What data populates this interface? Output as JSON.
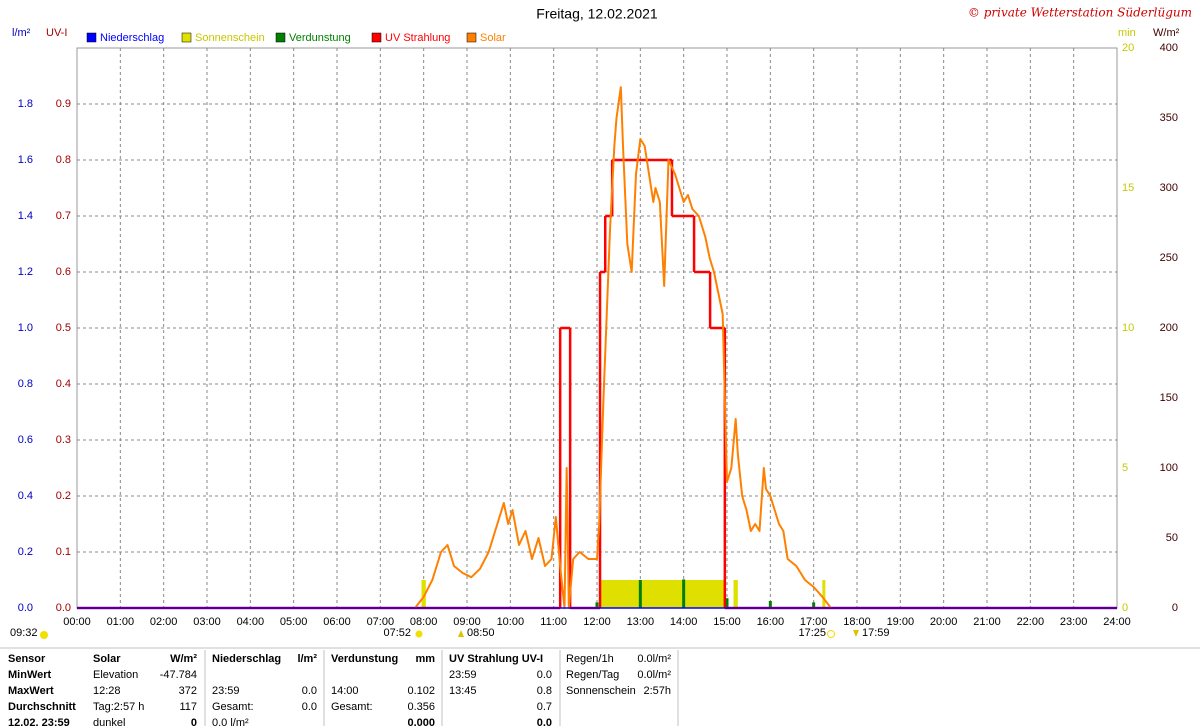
{
  "header": {
    "title": "Freitag, 12.02.2021",
    "copyright": "© private Wetterstation Süderlügum"
  },
  "chart_data": {
    "type": "line",
    "grid": true,
    "xlim": [
      0,
      24
    ],
    "xticks": [
      {
        "value": 0,
        "label": "00:00"
      },
      {
        "value": 1,
        "label": "01:00"
      },
      {
        "value": 2,
        "label": "02:00"
      },
      {
        "value": 3,
        "label": "03:00"
      },
      {
        "value": 4,
        "label": "04:00"
      },
      {
        "value": 5,
        "label": "05:00"
      },
      {
        "value": 6,
        "label": "06:00"
      },
      {
        "value": 7,
        "label": "07:00"
      },
      {
        "value": 8,
        "label": "08:00"
      },
      {
        "value": 9,
        "label": "09:00"
      },
      {
        "value": 10,
        "label": "10:00"
      },
      {
        "value": 11,
        "label": "11:00"
      },
      {
        "value": 12,
        "label": "12:00"
      },
      {
        "value": 13,
        "label": "13:00"
      },
      {
        "value": 14,
        "label": "14:00"
      },
      {
        "value": 15,
        "label": "15:00"
      },
      {
        "value": 16,
        "label": "16:00"
      },
      {
        "value": 17,
        "label": "17:00"
      },
      {
        "value": 18,
        "label": "18:00"
      },
      {
        "value": 19,
        "label": "19:00"
      },
      {
        "value": 20,
        "label": "20:00"
      },
      {
        "value": 21,
        "label": "21:00"
      },
      {
        "value": 22,
        "label": "22:00"
      },
      {
        "value": 23,
        "label": "23:00"
      },
      {
        "value": 24,
        "label": "24:00"
      }
    ],
    "axes": {
      "y": {
        "label": "l/m²",
        "color": "#0000c0",
        "lim": [
          0,
          2
        ],
        "ticks": [
          {
            "value": 0,
            "label": "0.0"
          },
          0.2,
          0.4,
          0.6,
          0.8,
          {
            "value": 1,
            "label": "1.0"
          },
          1.2,
          1.4,
          1.6,
          1.8
        ]
      },
      "uv": {
        "label": "UV-I",
        "color": "#a00000",
        "lim": [
          0,
          1
        ],
        "ticks": [
          {
            "value": 0,
            "label": "0.0"
          },
          0.1,
          0.2,
          0.3,
          0.4,
          0.5,
          0.6,
          0.7,
          0.8,
          0.9
        ]
      },
      "sun": {
        "label": "min",
        "color": "#c8c800",
        "lim": [
          0,
          20
        ],
        "ticks": [
          0,
          5,
          10,
          15,
          20
        ]
      },
      "y2": {
        "label": "W/m²",
        "color": "#400000",
        "lim": [
          0,
          400
        ],
        "ticks": [
          0,
          50,
          100,
          150,
          200,
          250,
          300,
          350,
          400
        ]
      }
    },
    "series": [
      {
        "name": "Niederschlag",
        "color": "#0000ff",
        "kind": "line",
        "axis": "y",
        "x": [
          0,
          24
        ],
        "values": [
          0,
          0
        ]
      },
      {
        "name": "Sonnenschein",
        "color": "#e0e000",
        "kind": "span",
        "axis": "sun",
        "x_start": [
          7.95,
          12.05,
          15.15,
          17.2
        ],
        "x_end": [
          8.05,
          14.95,
          15.25,
          17.27
        ],
        "values": [
          1,
          1,
          1,
          1
        ]
      },
      {
        "name": "Verdunstung",
        "color": "#008000",
        "kind": "spike",
        "axis": "y",
        "x": [
          12,
          13,
          14,
          15,
          16,
          17
        ],
        "values": [
          0.02,
          0.1,
          0.102,
          0.035,
          0.025,
          0.02
        ]
      },
      {
        "name": "UV Strahlung",
        "color": "#ff0000",
        "kind": "step",
        "axis": "uv",
        "x": [
          0,
          11.15,
          11.38,
          12.07,
          12.19,
          12.35,
          13.73,
          14.24,
          14.61,
          14.95
        ],
        "values": [
          0,
          0.5,
          0,
          0.6,
          0.7,
          0.8,
          0.7,
          0.6,
          0.5,
          0
        ]
      },
      {
        "name": "Solar",
        "color": "#ff8000",
        "kind": "line",
        "axis": "y2",
        "x": [
          7.8,
          8.0,
          8.2,
          8.4,
          8.55,
          8.7,
          8.9,
          9.1,
          9.3,
          9.5,
          9.7,
          9.85,
          9.95,
          10.05,
          10.2,
          10.35,
          10.5,
          10.65,
          10.8,
          10.95,
          11.05,
          11.15,
          11.25,
          11.3,
          11.35,
          11.45,
          11.6,
          11.8,
          12.0,
          12.05,
          12.15,
          12.3,
          12.4,
          12.45,
          12.55,
          12.6,
          12.7,
          12.8,
          12.9,
          13.0,
          13.1,
          13.2,
          13.3,
          13.35,
          13.45,
          13.55,
          13.65,
          13.8,
          13.9,
          14.0,
          14.1,
          14.2,
          14.35,
          14.5,
          14.6,
          14.7,
          14.8,
          14.9,
          14.95,
          15.0,
          15.1,
          15.2,
          15.25,
          15.35,
          15.45,
          15.55,
          15.65,
          15.75,
          15.85,
          15.9,
          16.0,
          16.1,
          16.2,
          16.3,
          16.4,
          16.6,
          16.8,
          17.0,
          17.2,
          17.4
        ],
        "values": [
          0,
          8,
          20,
          40,
          45,
          30,
          25,
          22,
          28,
          40,
          60,
          75,
          60,
          70,
          45,
          55,
          35,
          50,
          30,
          35,
          65,
          30,
          0,
          100,
          0,
          35,
          40,
          35,
          35,
          60,
          150,
          270,
          330,
          350,
          372,
          330,
          260,
          240,
          310,
          335,
          330,
          310,
          290,
          300,
          290,
          230,
          320,
          310,
          300,
          290,
          295,
          285,
          280,
          265,
          250,
          240,
          225,
          210,
          150,
          90,
          100,
          135,
          110,
          80,
          70,
          55,
          60,
          55,
          100,
          85,
          80,
          70,
          60,
          55,
          35,
          30,
          20,
          15,
          8,
          0
        ]
      }
    ],
    "annotations": [
      "09:32",
      "07:52",
      "08:50",
      "17:25",
      "17:59"
    ]
  },
  "table": {
    "header": [
      "Sensor",
      "Solar",
      "W/m²",
      "Niederschlag",
      "l/m²",
      "Verdunstung",
      "mm",
      "UV Strahlung UV-I",
      null,
      "Regen/1h",
      "0.0l/m²"
    ],
    "rows": [
      [
        "MinWert",
        "Elevation",
        "-47.784",
        null,
        null,
        null,
        null,
        "23:59",
        "0.0",
        "Regen/Tag",
        "0.0l/m²"
      ],
      [
        "MaxWert",
        "12:28",
        "372",
        "23:59",
        "0.0",
        "14:00",
        "0.102",
        "13:45",
        "0.8",
        "Sonnenschein",
        "2:57h"
      ],
      [
        "Durchschnitt",
        "Tag:2:57 h",
        "117",
        "Gesamt:",
        "0.0",
        "Gesamt:",
        "0.356",
        null,
        "0.7",
        null,
        null
      ],
      [
        "12.02. 23:59",
        "dunkel",
        "0",
        "0.0 l/m²",
        null,
        null,
        "0.000",
        null,
        "0.0",
        null,
        null
      ]
    ]
  }
}
